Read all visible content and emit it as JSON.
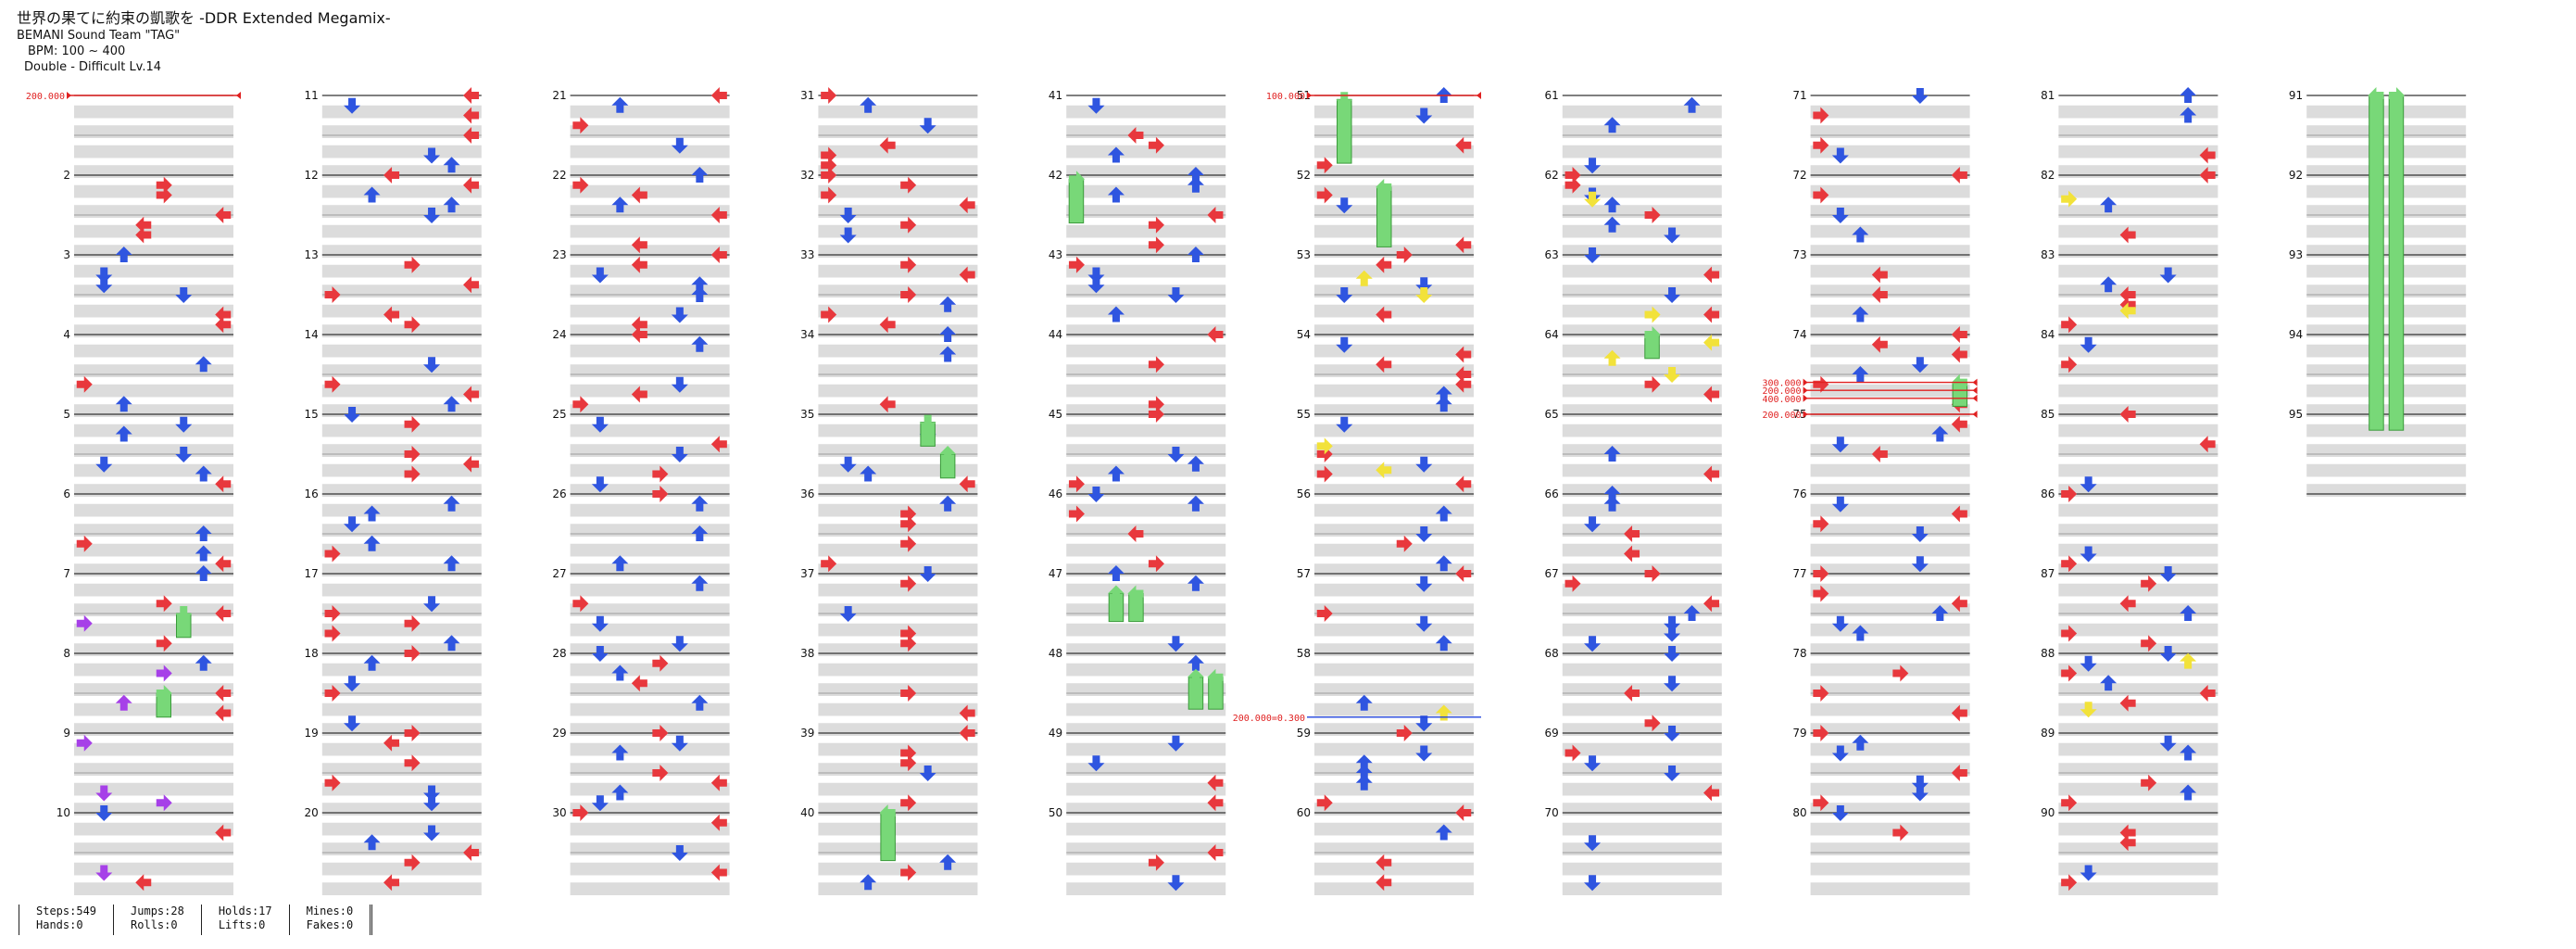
{
  "header": {
    "title": "世界の果てに約束の凱歌を -DDR Extended Megamix-",
    "artist": "BEMANI Sound Team \"TAG\"",
    "bpm": "BPM: 100 ~ 400",
    "difficulty": "Double - Difficult Lv.14"
  },
  "colors": {
    "red": "#e8383d",
    "blue": "#2f55e0",
    "purple": "#a640e8",
    "yellow": "#f2e23a",
    "green": "#78d878",
    "band": "#dcdcdc",
    "bpm_line": "#e02020",
    "stop_line": "#2244dd"
  },
  "measures": {
    "count": 95,
    "per_column": 10,
    "labels": [
      "2",
      "3",
      "4",
      "5",
      "6",
      "7",
      "8",
      "9",
      "10",
      "11",
      "12",
      "13",
      "14",
      "15",
      "16",
      "17",
      "18",
      "19",
      "20",
      "21",
      "22",
      "23",
      "24",
      "25",
      "26",
      "27",
      "28",
      "29",
      "30",
      "31",
      "32",
      "33",
      "34",
      "35",
      "36",
      "37",
      "38",
      "39",
      "40",
      "41",
      "42",
      "43",
      "44",
      "45",
      "46",
      "47",
      "48",
      "49",
      "50",
      "51",
      "52",
      "53",
      "54",
      "55",
      "56",
      "57",
      "58",
      "59",
      "60",
      "61",
      "62",
      "63",
      "64",
      "65",
      "66",
      "67",
      "68",
      "69",
      "70",
      "71",
      "72",
      "73",
      "74",
      "75",
      "76",
      "77",
      "78",
      "79",
      "80",
      "81",
      "82",
      "83",
      "84",
      "85",
      "86",
      "87",
      "88",
      "89",
      "90",
      "91",
      "92",
      "93",
      "94",
      "95"
    ]
  },
  "bpm_changes": [
    {
      "measure": 1,
      "label": "200.000"
    },
    {
      "measure": 51,
      "label": "100.000"
    },
    {
      "measure": 74.6,
      "label": "300.000"
    },
    {
      "measure": 74.7,
      "label": "200.000"
    },
    {
      "measure": 74.8,
      "label": "400.000"
    },
    {
      "measure": 75,
      "label": "200.000"
    }
  ],
  "stops": [
    {
      "measure": 58.8,
      "label": "200.000=0.300"
    }
  ],
  "stats": [
    {
      "top": "Steps:549",
      "bottom": "Hands:0"
    },
    {
      "top": "Jumps:28",
      "bottom": "Rolls:0"
    },
    {
      "top": "Holds:17",
      "bottom": "Lifts:0"
    },
    {
      "top": "Mines:0",
      "bottom": "Fakes:0"
    }
  ]
}
